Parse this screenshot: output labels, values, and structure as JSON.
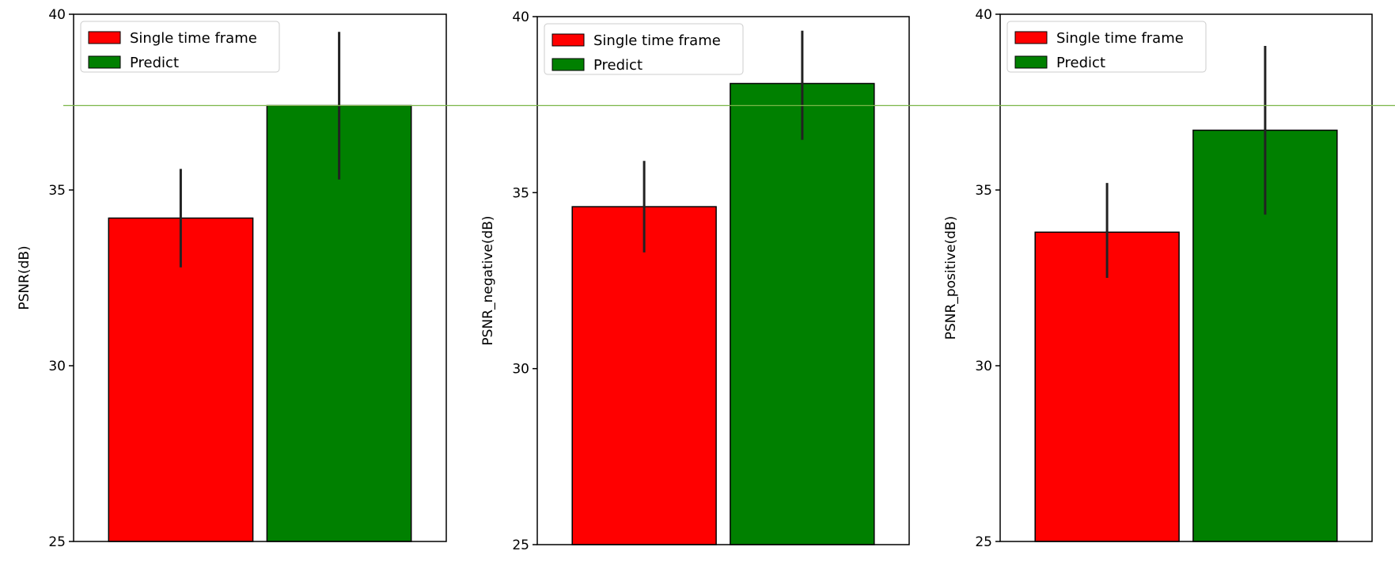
{
  "chart_data": [
    {
      "type": "bar",
      "ylabel": "PSNR(dB)",
      "ylim": [
        25,
        40
      ],
      "yticks": [
        "25",
        "30",
        "35",
        "40"
      ],
      "grid": false,
      "legend_position": "top-left",
      "series": [
        {
          "name": "Single time frame",
          "value": 34.2,
          "err_low": 32.8,
          "err_high": 35.6,
          "color": "#ff0000"
        },
        {
          "name": "Predict",
          "value": 37.4,
          "err_low": 35.3,
          "err_high": 39.5,
          "color": "#008000"
        }
      ]
    },
    {
      "type": "bar",
      "ylabel": "PSNR_negative(dB)",
      "ylim": [
        25,
        40
      ],
      "yticks": [
        "25",
        "30",
        "35",
        "40"
      ],
      "grid": false,
      "legend_position": "top-left",
      "series": [
        {
          "name": "Single time frame",
          "value": 34.6,
          "err_low": 33.3,
          "err_high": 35.9,
          "color": "#ff0000"
        },
        {
          "name": "Predict",
          "value": 38.1,
          "err_low": 36.5,
          "err_high": 39.6,
          "color": "#008000"
        }
      ]
    },
    {
      "type": "bar",
      "ylabel": "PSNR_positive(dB)",
      "ylim": [
        25,
        40
      ],
      "yticks": [
        "25",
        "30",
        "35",
        "40"
      ],
      "grid": false,
      "legend_position": "top-left",
      "series": [
        {
          "name": "Single time frame",
          "value": 33.8,
          "err_low": 32.5,
          "err_high": 35.2,
          "color": "#ff0000"
        },
        {
          "name": "Predict",
          "value": 36.7,
          "err_low": 34.3,
          "err_high": 39.1,
          "color": "#008000"
        }
      ]
    }
  ],
  "reference_line": {
    "value": 37.4,
    "color": "#7ab648"
  }
}
